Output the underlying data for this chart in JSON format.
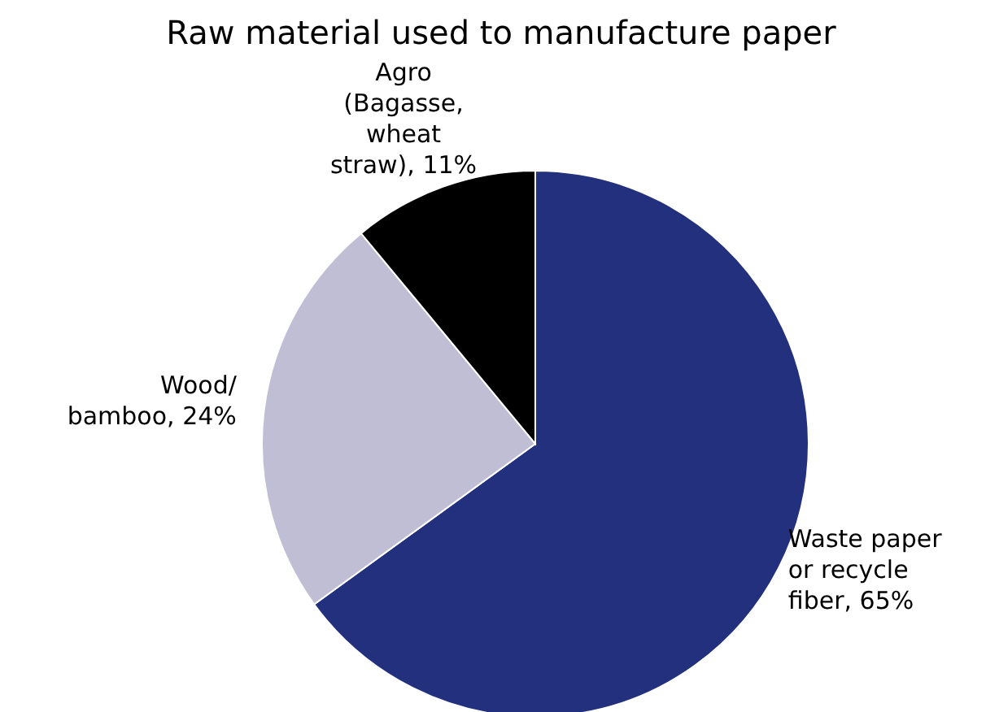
{
  "chart_data": {
    "type": "pie",
    "title": "Raw material used to manufacture paper",
    "categories": [
      "Waste paper or recycle fiber",
      "Wood/bamboo",
      "Agro (Bagasse, wheat straw)"
    ],
    "values": [
      65,
      24,
      11
    ],
    "colors": [
      "#22307e",
      "#c0bed4",
      "#000000"
    ],
    "value_labels": [
      "65%",
      "24%",
      "11%"
    ],
    "legend": false
  }
}
